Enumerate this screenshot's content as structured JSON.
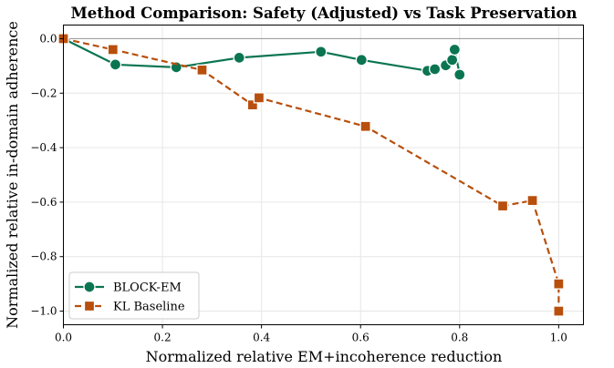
{
  "chart_data": {
    "type": "line",
    "title": "Method Comparison: Safety (Adjusted) vs Task Preservation",
    "xlabel": "Normalized relative EM+incoherence reduction",
    "ylabel": "Normalized relative in-domain adherence",
    "xlim": [
      0.0,
      1.05
    ],
    "ylim": [
      -1.05,
      0.05
    ],
    "xticks": [
      "0.0",
      "0.2",
      "0.4",
      "0.6",
      "0.8",
      "1.0"
    ],
    "yticks": [
      "0.0",
      "−0.2",
      "−0.4",
      "−0.6",
      "−0.8",
      "−1.0"
    ],
    "grid": true,
    "reference_line_y": 0.0,
    "legend_position": "lower-left",
    "series": [
      {
        "name": "BLOCK-EM",
        "color": "#0b7552",
        "marker": "circle",
        "linestyle": "solid",
        "x": [
          0.0,
          0.105,
          0.228,
          0.355,
          0.52,
          0.602,
          0.735,
          0.75,
          0.772,
          0.785,
          0.79,
          0.8
        ],
        "y": [
          0.0,
          -0.095,
          -0.105,
          -0.07,
          -0.048,
          -0.078,
          -0.118,
          -0.112,
          -0.098,
          -0.078,
          -0.04,
          -0.132
        ]
      },
      {
        "name": "KL Baseline",
        "color": "#b84f0c",
        "marker": "square",
        "linestyle": "dashed",
        "x": [
          0.0,
          0.1,
          0.28,
          0.382,
          0.395,
          0.61,
          0.887,
          0.947,
          1.0,
          1.0
        ],
        "y": [
          0.0,
          -0.04,
          -0.115,
          -0.243,
          -0.217,
          -0.322,
          -0.614,
          -0.594,
          -0.9,
          -1.0
        ]
      }
    ]
  }
}
